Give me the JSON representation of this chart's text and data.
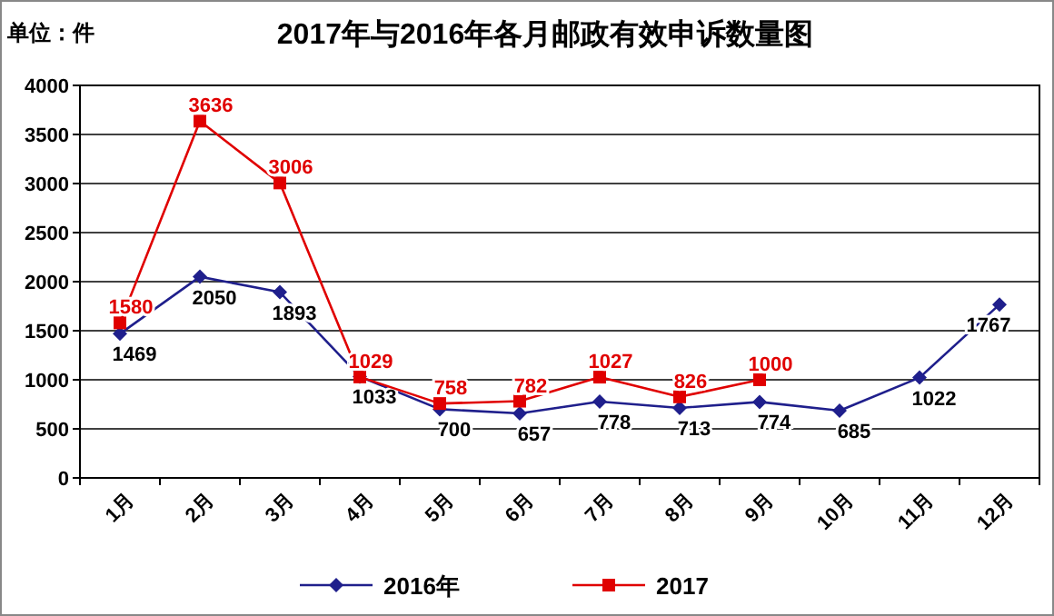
{
  "chart_data": {
    "type": "line",
    "title": "2017年与2016年各月邮政有效申诉数量图",
    "ylabel": "单位：件",
    "categories": [
      "1月",
      "2月",
      "3月",
      "4月",
      "5月",
      "6月",
      "7月",
      "8月",
      "9月",
      "10月",
      "11月",
      "12月"
    ],
    "series": [
      {
        "name": "2016年",
        "color": "#1f1f8c",
        "marker": "diamond",
        "values": [
          1469,
          2050,
          1893,
          1033,
          700,
          657,
          778,
          713,
          774,
          685,
          1022,
          1767
        ]
      },
      {
        "name": "2017",
        "color": "#e00000",
        "marker": "square",
        "values": [
          1580,
          3636,
          3006,
          1029,
          758,
          782,
          1027,
          826,
          1000,
          null,
          null,
          null
        ]
      }
    ],
    "ylim": [
      0,
      4000
    ],
    "yticks": [
      0,
      500,
      1000,
      1500,
      2000,
      2500,
      3000,
      3500,
      4000
    ],
    "grid": "y",
    "legend": "bottom",
    "data_labels": true
  }
}
